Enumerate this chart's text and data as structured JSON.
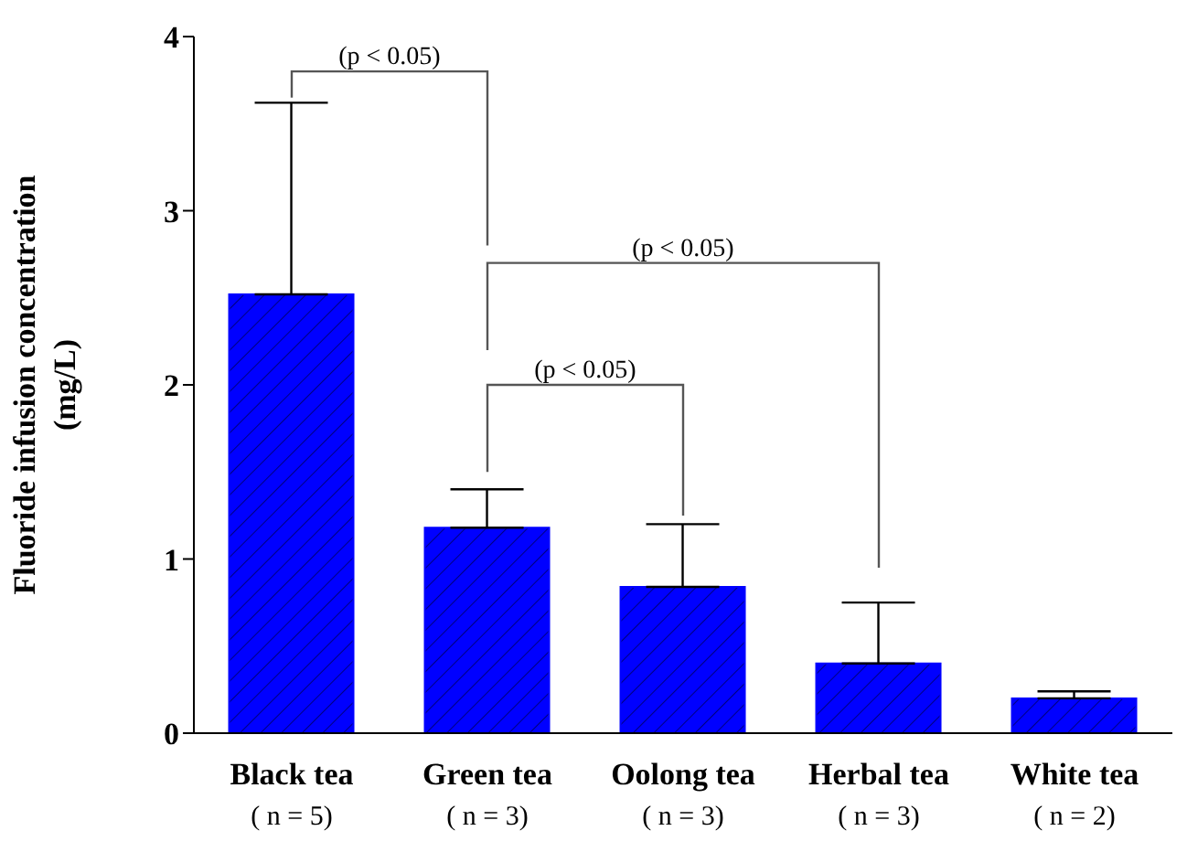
{
  "chart_data": {
    "type": "bar",
    "ylabel": "Fluoride infusion concentration\n(mg/L)",
    "categories": [
      "Black tea\n( n = 5)",
      "Green tea\n( n = 3)",
      "Oolong tea\n( n = 3)",
      "Herbal tea\n( n = 3)",
      "White tea\n( n = 2)"
    ],
    "values": [
      2.52,
      1.18,
      0.84,
      0.4,
      0.2
    ],
    "errors": [
      1.1,
      0.22,
      0.36,
      0.35,
      0.04
    ],
    "color": "#0000ff",
    "ylim": [
      0,
      4
    ],
    "yticks": [
      0,
      1,
      2,
      3,
      4
    ],
    "annotations": [
      "(p < 0.05)",
      "(p < 0.05)",
      "(p < 0.05)"
    ]
  }
}
